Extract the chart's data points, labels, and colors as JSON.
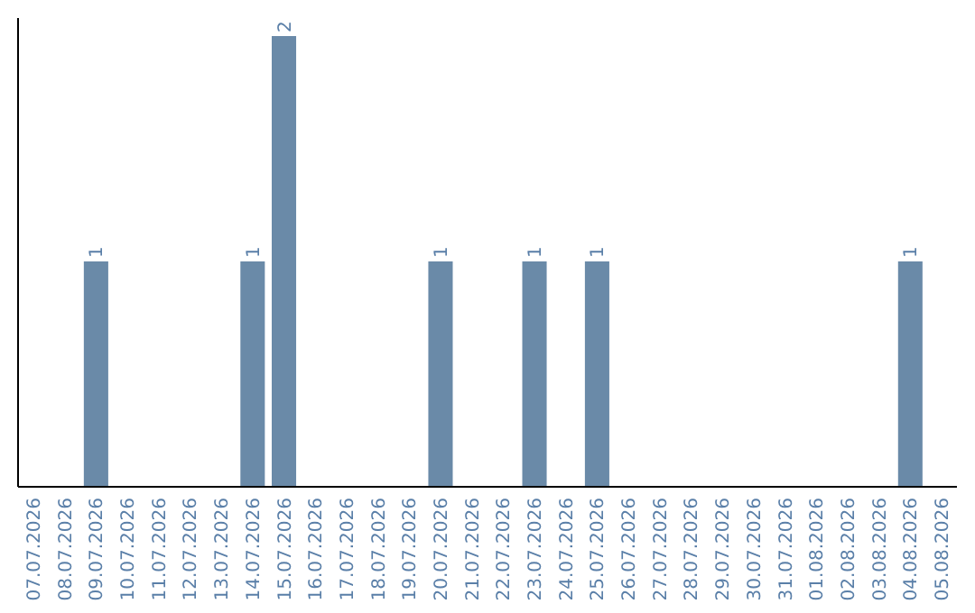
{
  "chart_data": {
    "type": "bar",
    "categories": [
      "07.07.2026",
      "08.07.2026",
      "09.07.2026",
      "10.07.2026",
      "11.07.2026",
      "12.07.2026",
      "13.07.2026",
      "14.07.2026",
      "15.07.2026",
      "16.07.2026",
      "17.07.2026",
      "18.07.2026",
      "19.07.2026",
      "20.07.2026",
      "21.07.2026",
      "22.07.2026",
      "23.07.2026",
      "24.07.2026",
      "25.07.2026",
      "26.07.2026",
      "27.07.2026",
      "28.07.2026",
      "29.07.2026",
      "30.07.2026",
      "31.07.2026",
      "01.08.2026",
      "02.08.2026",
      "03.08.2026",
      "04.08.2026",
      "05.08.2026"
    ],
    "values": [
      null,
      null,
      1,
      null,
      null,
      null,
      null,
      1,
      2,
      null,
      null,
      null,
      null,
      1,
      null,
      null,
      1,
      null,
      1,
      null,
      null,
      null,
      null,
      null,
      null,
      null,
      null,
      null,
      1,
      null
    ],
    "color": "#6a8aa8",
    "ylim": [
      0,
      2.08
    ],
    "data_labels": true,
    "tick_labels": "x"
  }
}
